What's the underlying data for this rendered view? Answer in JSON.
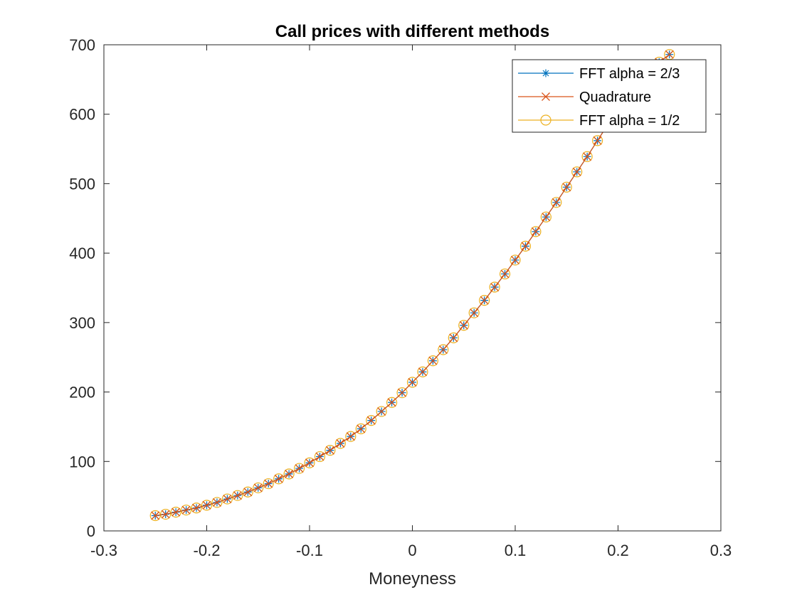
{
  "chart_data": {
    "type": "line",
    "title": "Call prices with different methods",
    "xlabel": "Moneyness",
    "ylabel": "",
    "xlim": [
      -0.3,
      0.3
    ],
    "ylim": [
      0,
      700
    ],
    "xticks": [
      -0.3,
      -0.2,
      -0.1,
      0,
      0.1,
      0.2,
      0.3
    ],
    "xtick_labels": [
      "-0.3",
      "-0.2",
      "-0.1",
      "0",
      "0.1",
      "0.2",
      "0.3"
    ],
    "yticks": [
      0,
      100,
      200,
      300,
      400,
      500,
      600,
      700
    ],
    "ytick_labels": [
      "0",
      "100",
      "200",
      "300",
      "400",
      "500",
      "600",
      "700"
    ],
    "grid": false,
    "legend_position": "top-right",
    "x": [
      -0.25,
      -0.24,
      -0.23,
      -0.22,
      -0.21,
      -0.2,
      -0.19,
      -0.18,
      -0.17,
      -0.16,
      -0.15,
      -0.14,
      -0.13,
      -0.12,
      -0.11,
      -0.1,
      -0.09,
      -0.08,
      -0.07,
      -0.06,
      -0.05,
      -0.04,
      -0.03,
      -0.02,
      -0.01,
      0,
      0.01,
      0.02,
      0.03,
      0.04,
      0.05,
      0.06,
      0.07,
      0.08,
      0.09,
      0.1,
      0.11,
      0.12,
      0.13,
      0.14,
      0.15,
      0.16,
      0.17,
      0.18,
      0.19,
      0.2,
      0.21,
      0.22,
      0.23,
      0.24,
      0.25
    ],
    "series": [
      {
        "name": "FFT alpha = 2/3",
        "color": "#0072BD",
        "marker": "asterisk",
        "values": [
          22,
          24,
          27,
          30,
          33,
          37,
          41,
          46,
          51,
          56,
          62,
          68,
          75,
          82,
          90,
          98,
          107,
          116,
          126,
          136,
          147,
          159,
          172,
          185,
          199,
          214,
          229,
          245,
          261,
          278,
          296,
          314,
          332,
          351,
          370,
          390,
          410,
          431,
          452,
          473,
          495,
          517,
          539,
          562,
          585,
          609,
          629,
          645,
          661,
          675,
          686
        ]
      },
      {
        "name": "Quadrature",
        "color": "#D95319",
        "marker": "x",
        "values": [
          22,
          24,
          27,
          30,
          33,
          37,
          41,
          46,
          51,
          56,
          62,
          68,
          75,
          82,
          90,
          98,
          107,
          116,
          126,
          136,
          147,
          159,
          172,
          185,
          199,
          214,
          229,
          245,
          261,
          278,
          296,
          314,
          332,
          351,
          370,
          390,
          410,
          431,
          452,
          473,
          495,
          517,
          539,
          562,
          585,
          609,
          629,
          645,
          661,
          675,
          686
        ]
      },
      {
        "name": "FFT alpha = 1/2",
        "color": "#EDB120",
        "marker": "circle",
        "values": [
          22,
          24,
          27,
          30,
          33,
          37,
          41,
          46,
          51,
          56,
          62,
          68,
          75,
          82,
          90,
          98,
          107,
          116,
          126,
          136,
          147,
          159,
          172,
          185,
          199,
          214,
          229,
          245,
          261,
          278,
          296,
          314,
          332,
          351,
          370,
          390,
          410,
          431,
          452,
          473,
          495,
          517,
          539,
          562,
          585,
          609,
          629,
          645,
          661,
          675,
          686
        ]
      }
    ]
  }
}
